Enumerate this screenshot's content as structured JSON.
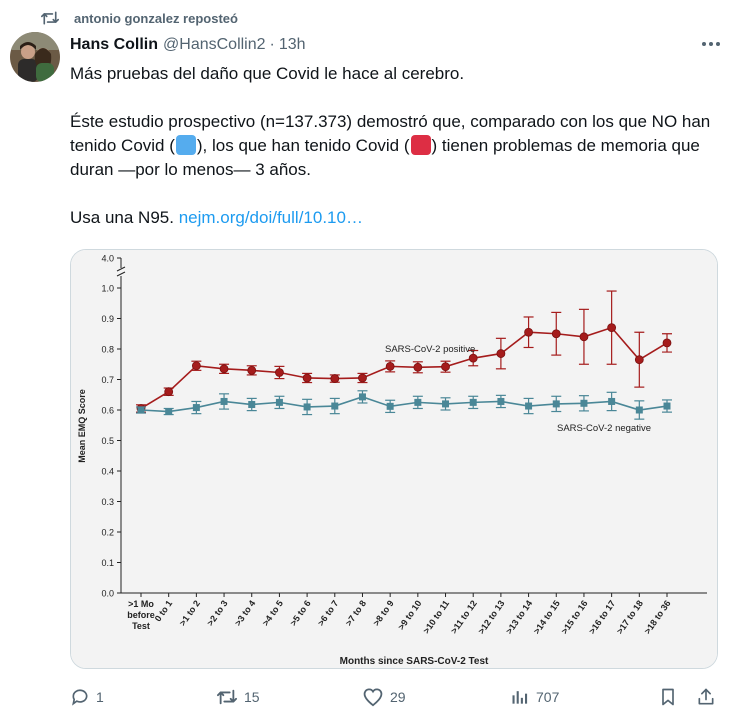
{
  "repost": {
    "text": "antonio gonzalez reposteó",
    "icon": "repost-icon"
  },
  "author": {
    "name": "Hans Collin",
    "handle": "@HansCollin2",
    "separator": "·",
    "time": "13h"
  },
  "tweet": {
    "line1": "Más pruebas del daño que Covid le hace al cerebro.",
    "p2_a": "Éste estudio prospectivo (n=137.373) demostró que, comparado con los que NO han tenido Covid (",
    "p2_b": "), los que han tenido Covid (",
    "p2_c": ") tienen problemas de memoria que duran —por lo menos— 3 años.",
    "p3_a": "Usa una N95. ",
    "link": "nejm.org/doi/full/10.10…",
    "emoji_blue": "#55acee",
    "emoji_red": "#dd2e44"
  },
  "actions": {
    "replies": "1",
    "reposts": "15",
    "likes": "29",
    "views": "707"
  },
  "chart_data": {
    "type": "line",
    "ylabel": "Mean EMQ Score",
    "xlabel": "Months since SARS-CoV-2 Test",
    "ylim": [
      0,
      1.0
    ],
    "y_break_top": "4.0",
    "y_ticks": [
      "0.0",
      "0.1",
      "0.2",
      "0.3",
      "0.4",
      "0.5",
      "0.6",
      "0.7",
      "0.8",
      "0.9",
      "1.0"
    ],
    "categories": [
      ">1 Mo before Test",
      "0 to 1",
      ">1 to 2",
      ">2 to 3",
      ">3 to 4",
      ">4 to 5",
      ">5 to 6",
      ">6 to 7",
      ">7 to 8",
      ">8 to 9",
      ">9 to 10",
      ">10 to 11",
      ">11 to 12",
      ">12 to 13",
      ">13 to 14",
      ">14 to 15",
      ">15 to 16",
      ">16 to 17",
      ">17 to 18",
      ">18 to 36"
    ],
    "series": [
      {
        "name": "SARS-CoV-2 positive",
        "color": "#a51c1c",
        "values": [
          0.605,
          0.66,
          0.745,
          0.735,
          0.73,
          0.723,
          0.705,
          0.703,
          0.705,
          0.743,
          0.74,
          0.742,
          0.77,
          0.785,
          0.855,
          0.85,
          0.84,
          0.87,
          0.765,
          0.82
        ],
        "err": [
          0.012,
          0.012,
          0.015,
          0.015,
          0.015,
          0.02,
          0.015,
          0.012,
          0.015,
          0.018,
          0.018,
          0.018,
          0.025,
          0.05,
          0.05,
          0.07,
          0.09,
          0.12,
          0.09,
          0.03
        ]
      },
      {
        "name": "SARS-CoV-2 negative",
        "color": "#4a8797",
        "values": [
          0.6,
          0.595,
          0.608,
          0.628,
          0.618,
          0.625,
          0.61,
          0.613,
          0.643,
          0.612,
          0.625,
          0.62,
          0.625,
          0.628,
          0.613,
          0.62,
          0.622,
          0.628,
          0.6,
          0.613
        ],
        "err": [
          0.01,
          0.01,
          0.02,
          0.025,
          0.02,
          0.02,
          0.025,
          0.025,
          0.02,
          0.02,
          0.02,
          0.02,
          0.02,
          0.02,
          0.025,
          0.025,
          0.025,
          0.03,
          0.03,
          0.02
        ]
      }
    ]
  }
}
